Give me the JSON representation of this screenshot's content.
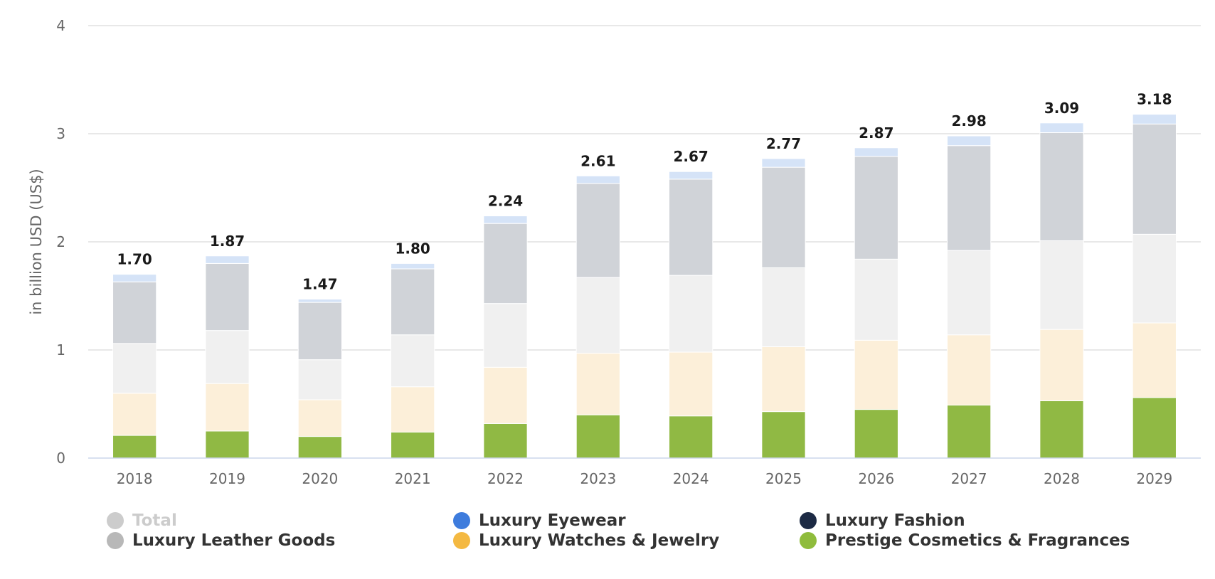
{
  "chart_data": {
    "type": "bar",
    "stacked": true,
    "ylabel": "in billion USD (US$)",
    "ylim": [
      0,
      4
    ],
    "yticks": [
      0,
      1,
      2,
      3,
      4
    ],
    "grid": true,
    "legend_position": "bottom",
    "categories": [
      "2018",
      "2019",
      "2020",
      "2021",
      "2022",
      "2023",
      "2024",
      "2025",
      "2026",
      "2027",
      "2028",
      "2029"
    ],
    "totals": [
      "1.70",
      "1.87",
      "1.47",
      "1.80",
      "2.24",
      "2.61",
      "2.67",
      "2.77",
      "2.87",
      "2.98",
      "3.09",
      "3.18"
    ],
    "series": [
      {
        "name": "Prestige Cosmetics & Fragrances",
        "color": "#90b944",
        "legend_color": "#8fbc3c",
        "values": [
          0.21,
          0.25,
          0.2,
          0.24,
          0.32,
          0.4,
          0.39,
          0.43,
          0.45,
          0.49,
          0.53,
          0.56
        ]
      },
      {
        "name": "Luxury Watches & Jewelry",
        "color": "#fcefd9",
        "legend_color": "#f4b942",
        "values": [
          0.39,
          0.44,
          0.34,
          0.42,
          0.52,
          0.57,
          0.59,
          0.6,
          0.64,
          0.65,
          0.66,
          0.69
        ]
      },
      {
        "name": "Luxury Fashion",
        "color": "#f0f0f0",
        "legend_color": "#1c2a44",
        "values": [
          0.46,
          0.49,
          0.37,
          0.48,
          0.59,
          0.7,
          0.71,
          0.73,
          0.75,
          0.78,
          0.82,
          0.82
        ]
      },
      {
        "name": "Luxury Leather Goods",
        "color": "#d0d3d8",
        "legend_color": "#b8b8b8",
        "values": [
          0.57,
          0.62,
          0.53,
          0.61,
          0.74,
          0.87,
          0.89,
          0.93,
          0.95,
          0.97,
          1.0,
          1.02
        ]
      },
      {
        "name": "Luxury Eyewear",
        "color": "#d5e3f7",
        "legend_color": "#3e7cdd",
        "values": [
          0.07,
          0.07,
          0.03,
          0.05,
          0.07,
          0.07,
          0.07,
          0.08,
          0.08,
          0.09,
          0.09,
          0.09
        ]
      }
    ],
    "legend": [
      {
        "label": "Total",
        "color": "#cccccc",
        "active": false
      },
      {
        "label": "Luxury Eyewear",
        "color": "#3e7cdd",
        "active": true
      },
      {
        "label": "Luxury Fashion",
        "color": "#1c2a44",
        "active": true
      },
      {
        "label": "Luxury Leather Goods",
        "color": "#b8b8b8",
        "active": true
      },
      {
        "label": "Luxury Watches & Jewelry",
        "color": "#f4b942",
        "active": true
      },
      {
        "label": "Prestige Cosmetics & Fragrances",
        "color": "#8fbc3c",
        "active": true
      }
    ]
  }
}
